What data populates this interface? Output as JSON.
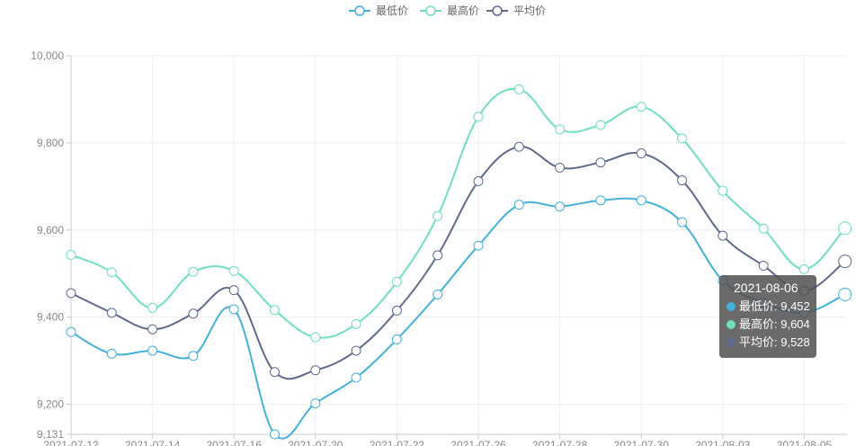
{
  "chart_data": {
    "type": "line",
    "smooth": true,
    "x": [
      "2021-07-12",
      "2021-07-13",
      "2021-07-14",
      "2021-07-15",
      "2021-07-16",
      "2021-07-19",
      "2021-07-20",
      "2021-07-21",
      "2021-07-22",
      "2021-07-23",
      "2021-07-26",
      "2021-07-27",
      "2021-07-28",
      "2021-07-29",
      "2021-07-30",
      "2021-08-02",
      "2021-08-03",
      "2021-08-04",
      "2021-08-05",
      "2021-08-06"
    ],
    "x_tick_labels": [
      "2021-07-12",
      "2021-07-14",
      "2021-07-16",
      "2021-07-20",
      "2021-07-22",
      "2021-07-26",
      "2021-07-28",
      "2021-07-30",
      "2021-08-03",
      "2021-08-05"
    ],
    "series": [
      {
        "name": "最低价",
        "color": "#44b0dc",
        "values": [
          9366,
          9316,
          9323,
          9311,
          9418,
          9131,
          9202,
          9261,
          9349,
          9452,
          9564,
          9658,
          9654,
          9668,
          9668,
          9618,
          9484,
          9433,
          9410,
          9452
        ]
      },
      {
        "name": "最高价",
        "color": "#6fdfbe",
        "values": [
          9543,
          9503,
          9421,
          9504,
          9506,
          9416,
          9354,
          9384,
          9481,
          9632,
          9860,
          9923,
          9831,
          9841,
          9883,
          9810,
          9690,
          9603,
          9510,
          9604
        ]
      },
      {
        "name": "平均价",
        "color": "#5f6a8c",
        "values": [
          9455,
          9410,
          9372,
          9408,
          9462,
          9274,
          9278,
          9323,
          9415,
          9542,
          9712,
          9791,
          9743,
          9755,
          9776,
          9714,
          9587,
          9518,
          9460,
          9528
        ]
      }
    ],
    "y_ticks": [
      9131,
      9200,
      9400,
      9600,
      9800,
      10000
    ],
    "y_tick_labels": [
      "9,131",
      "9,200",
      "9,400",
      "9,600",
      "9,800",
      "10,000"
    ],
    "ylim": [
      9131,
      10000
    ],
    "grid": true,
    "legend_position": "top-center",
    "tooltip": {
      "title": "2021-08-06",
      "rows": [
        {
          "label": "最低价: 9,452",
          "color": "#44b0dc"
        },
        {
          "label": "最高价: 9,604",
          "color": "#6fdfbe"
        },
        {
          "label": "平均价: 9,528",
          "color": "#5f6a8c"
        }
      ]
    }
  }
}
